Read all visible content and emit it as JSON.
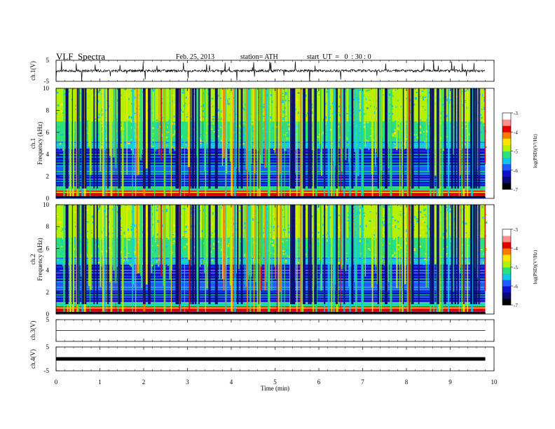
{
  "header": {
    "title": "VLF  Spectra",
    "date": "Feb. 25, 2013",
    "station": "station= ATH",
    "start": "start  UT  =   0  : 30 : 0"
  },
  "chart_data": [
    {
      "type": "line",
      "panel": "channel-1-waveform",
      "ylabel": "ch.1(V)",
      "ylim": [
        -5,
        5
      ],
      "yticks": [
        "5",
        "-5"
      ],
      "baseline": 0,
      "x_range_min": [
        0,
        9.8
      ]
    },
    {
      "type": "heatmap",
      "panel": "channel-1-spectrogram",
      "ylabel_line1": "ch.1",
      "ylabel_line2": "Frequency  (kHz)",
      "ylim": [
        0,
        10
      ],
      "yticks": [
        "0",
        "2",
        "4",
        "6",
        "8",
        "10"
      ],
      "x_range_min": [
        0,
        9.8
      ],
      "colorbar": {
        "label": "log(PSD)(V²/Hz)",
        "range": [
          -7,
          -3
        ],
        "ticks": [
          "-3",
          "-4",
          "-5",
          "-6",
          "-7"
        ]
      }
    },
    {
      "type": "heatmap",
      "panel": "channel-2-spectrogram",
      "ylabel_line1": "ch.2",
      "ylabel_line2": "Frequency  (kHz)",
      "ylim": [
        0,
        10
      ],
      "yticks": [
        "0",
        "2",
        "4",
        "6",
        "8",
        "10"
      ],
      "x_range_min": [
        0,
        9.8
      ],
      "colorbar": {
        "label": "log(PSD)(V²/Hz)",
        "range": [
          -7,
          -3
        ],
        "ticks": [
          "-3",
          "-4",
          "-5",
          "-6",
          "-7"
        ]
      }
    },
    {
      "type": "line",
      "panel": "channel-3-waveform",
      "ylabel": "ch.3(V)",
      "ylim": [
        -5,
        5
      ],
      "yticks": [
        "5"
      ],
      "baseline": 0,
      "x_range_min": [
        0,
        9.8
      ]
    },
    {
      "type": "line",
      "panel": "channel-4-waveform",
      "ylabel": "ch.4(V)",
      "ylim": [
        -5,
        5
      ],
      "yticks": [
        "5",
        "-5"
      ],
      "baseline": 0,
      "x_range_min": [
        0,
        9.8
      ]
    }
  ],
  "x_axis": {
    "label": "Time  (min)",
    "range": [
      0,
      10
    ],
    "ticks": [
      "0",
      "1",
      "2",
      "3",
      "4",
      "5",
      "6",
      "7",
      "8",
      "9",
      "10"
    ]
  },
  "colormap": [
    "#000000",
    "#0a0a6e",
    "#1010c8",
    "#1e5cff",
    "#10c8e6",
    "#2ee07a",
    "#b4f000",
    "#ffe600",
    "#ff7a00",
    "#e00000",
    "#ffffff"
  ]
}
